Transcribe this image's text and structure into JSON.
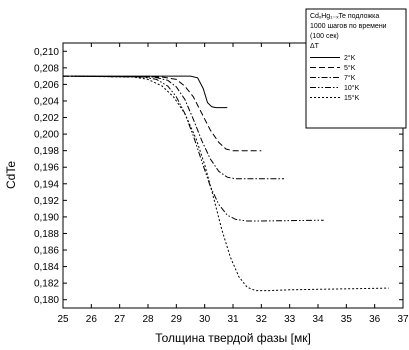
{
  "chart_data": {
    "type": "line",
    "title": "",
    "xlabel": "Толщина твердой фазы [мк]",
    "ylabel": "CdTe",
    "xlim": [
      25,
      37
    ],
    "ylim": [
      0.179,
      0.211
    ],
    "x_ticks": [
      "25",
      "26",
      "27",
      "28",
      "29",
      "30",
      "31",
      "32",
      "33",
      "34",
      "35",
      "36",
      "37"
    ],
    "y_ticks": [
      "0,180",
      "0,182",
      "0,184",
      "0,186",
      "0,188",
      "0,190",
      "0,192",
      "0,194",
      "0,196",
      "0,198",
      "0,200",
      "0,202",
      "0,204",
      "0,206",
      "0,208",
      "0,210"
    ],
    "legend": {
      "placement": "top-right",
      "title_lines": [
        "CdₓHg₁₋ₓTe подложка",
        "1000 шагов по времени",
        "(100 сек)",
        "ΔT"
      ],
      "entries": [
        "2°K",
        "5°K",
        "7°K",
        "10°K",
        "15°K"
      ]
    },
    "series": [
      {
        "name": "2°K",
        "dash": "solid",
        "x": [
          25.0,
          29.0,
          29.5,
          29.75,
          29.95,
          30.1,
          30.25,
          30.4,
          30.55,
          30.8
        ],
        "y": [
          0.207,
          0.207,
          0.207,
          0.2068,
          0.2055,
          0.2038,
          0.2033,
          0.2032,
          0.2032,
          0.2032
        ]
      },
      {
        "name": "5°K",
        "dash": "dash",
        "x": [
          25.0,
          28.5,
          29.0,
          29.3,
          29.6,
          29.9,
          30.2,
          30.5,
          30.75,
          31.0,
          31.3,
          32.0
        ],
        "y": [
          0.207,
          0.2069,
          0.2066,
          0.2058,
          0.2045,
          0.2025,
          0.2005,
          0.199,
          0.1982,
          0.198,
          0.198,
          0.198
        ]
      },
      {
        "name": "7°K",
        "dash": "dashdot",
        "x": [
          25.0,
          28.2,
          28.7,
          29.0,
          29.3,
          29.6,
          29.9,
          30.2,
          30.5,
          30.8,
          31.1,
          31.6,
          32.8
        ],
        "y": [
          0.207,
          0.2069,
          0.2065,
          0.2057,
          0.2042,
          0.2018,
          0.1992,
          0.197,
          0.1955,
          0.1948,
          0.1946,
          0.1946,
          0.1946
        ]
      },
      {
        "name": "10°K",
        "dash": "dashdotdot",
        "x": [
          25.0,
          27.8,
          28.3,
          28.7,
          29.0,
          29.3,
          29.6,
          29.9,
          30.2,
          30.5,
          30.8,
          31.1,
          31.5,
          32.0,
          34.2
        ],
        "y": [
          0.207,
          0.2069,
          0.2066,
          0.2058,
          0.2045,
          0.2025,
          0.1998,
          0.1967,
          0.1937,
          0.1915,
          0.1902,
          0.1897,
          0.1895,
          0.1895,
          0.1896
        ]
      },
      {
        "name": "15°K",
        "dash": "dot",
        "x": [
          25.0,
          27.5,
          28.0,
          28.5,
          28.9,
          29.3,
          29.7,
          30.0,
          30.3,
          30.6,
          30.9,
          31.2,
          31.5,
          31.8,
          32.3,
          33.0,
          36.5
        ],
        "y": [
          0.207,
          0.2069,
          0.2066,
          0.2058,
          0.2045,
          0.2025,
          0.1994,
          0.1963,
          0.1925,
          0.1885,
          0.1852,
          0.1828,
          0.1815,
          0.1811,
          0.1811,
          0.1812,
          0.1814
        ]
      }
    ]
  }
}
